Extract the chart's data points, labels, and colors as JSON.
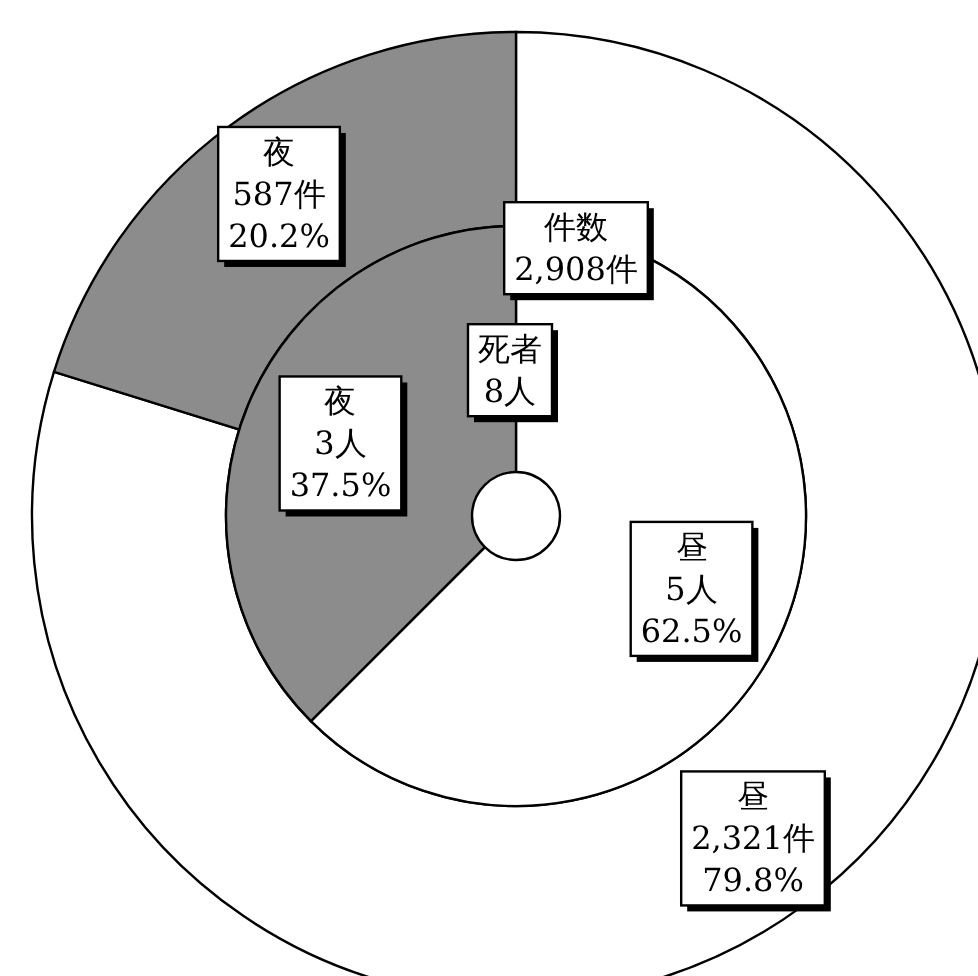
{
  "chart_data": [
    {
      "type": "donut",
      "title": "件数\n2,908件",
      "categories": [
        "昼",
        "夜"
      ],
      "values": [
        2321,
        587
      ],
      "colors": [
        "#ffffff",
        "#8c8c8c"
      ],
      "value_labels": [
        "2,321件\n79.8%",
        "587件\n20.2%"
      ]
    },
    {
      "type": "pie",
      "title": "死者\n8人",
      "categories": [
        "昼",
        "夜"
      ],
      "values": [
        5,
        3
      ],
      "colors": [
        "#ffffff",
        "#8c8c8c"
      ],
      "value_labels": [
        "5人\n62.5%",
        "3人\n37.5%"
      ]
    }
  ]
}
